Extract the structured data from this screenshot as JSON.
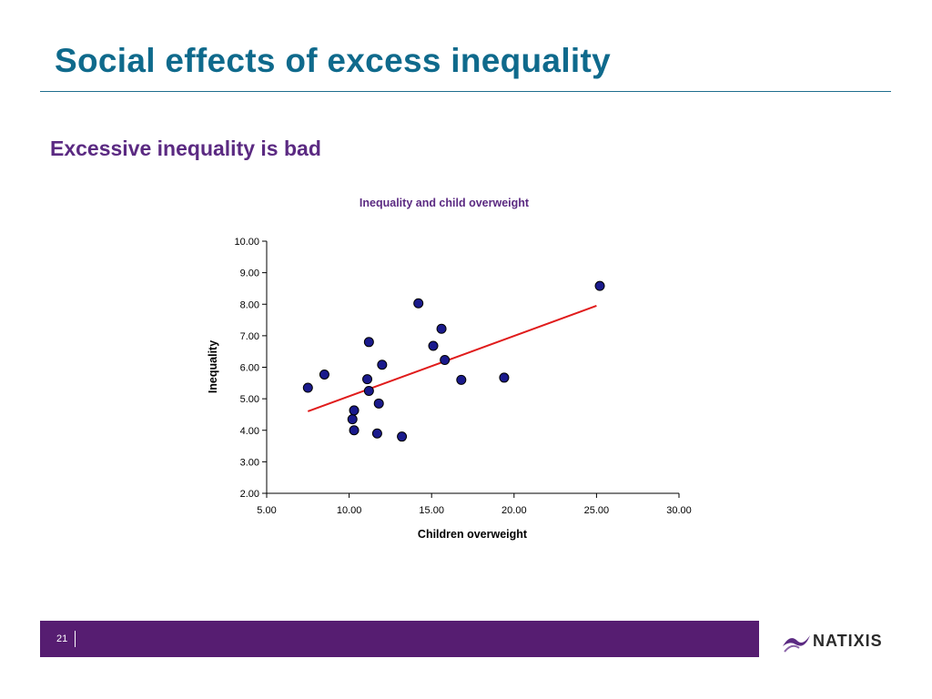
{
  "slide": {
    "title": "Social effects of excess inequality",
    "subtitle": "Excessive inequality is bad",
    "page_number": "21",
    "logo_text": "NATIXIS",
    "colors": {
      "title": "#0f6a8c",
      "subtitle": "#5b2a82",
      "footer": "#561d71",
      "logo_accent": "#5b2a82"
    }
  },
  "chart_data": {
    "type": "scatter",
    "title": "Inequality and child overweight",
    "xlabel": "Children overweight",
    "ylabel": "Inequality",
    "xlim": [
      5,
      30
    ],
    "ylim": [
      2,
      10
    ],
    "x_ticks": [
      "5.00",
      "10.00",
      "15.00",
      "20.00",
      "25.00",
      "30.00"
    ],
    "y_ticks": [
      "2.00",
      "3.00",
      "4.00",
      "5.00",
      "6.00",
      "7.00",
      "8.00",
      "9.00",
      "10.00"
    ],
    "grid": false,
    "point_color": "#1a1a8c",
    "trend_color": "#e01b1b",
    "points": [
      {
        "x": 7.5,
        "y": 5.35
      },
      {
        "x": 8.5,
        "y": 5.77
      },
      {
        "x": 10.2,
        "y": 4.35
      },
      {
        "x": 10.3,
        "y": 4.63
      },
      {
        "x": 10.3,
        "y": 4.0
      },
      {
        "x": 11.1,
        "y": 5.62
      },
      {
        "x": 11.2,
        "y": 5.25
      },
      {
        "x": 11.2,
        "y": 6.8
      },
      {
        "x": 11.7,
        "y": 3.9
      },
      {
        "x": 11.8,
        "y": 4.85
      },
      {
        "x": 12.0,
        "y": 6.08
      },
      {
        "x": 13.2,
        "y": 3.8
      },
      {
        "x": 14.2,
        "y": 8.03
      },
      {
        "x": 15.1,
        "y": 6.68
      },
      {
        "x": 15.6,
        "y": 7.22
      },
      {
        "x": 15.8,
        "y": 6.23
      },
      {
        "x": 16.8,
        "y": 5.6
      },
      {
        "x": 19.4,
        "y": 5.67
      },
      {
        "x": 25.2,
        "y": 8.58
      }
    ],
    "trendline": [
      {
        "x": 7.5,
        "y": 4.6
      },
      {
        "x": 25.0,
        "y": 7.95
      }
    ]
  }
}
